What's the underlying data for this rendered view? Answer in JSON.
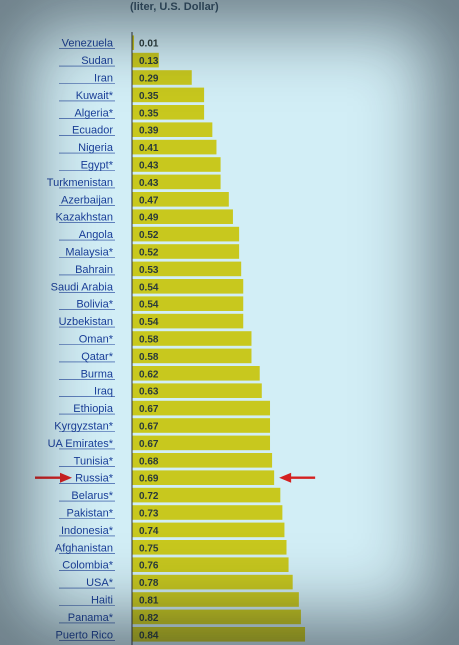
{
  "header": {
    "unit_label": "(liter, U.S. Dollar)"
  },
  "colors": {
    "bar": "#c8c81e",
    "label": "#1a3f9a",
    "arrow": "#d42020",
    "axis": "#333333"
  },
  "highlight": "Russia*",
  "chart_data": {
    "type": "bar",
    "orientation": "horizontal",
    "title": "",
    "xlabel": "",
    "ylabel": "",
    "unit": "(liter, U.S. Dollar)",
    "xlim": [
      0,
      1.0
    ],
    "categories": [
      "Venezuela",
      "Sudan",
      "Iran",
      "Kuwait*",
      "Algeria*",
      "Ecuador",
      "Nigeria",
      "Egypt*",
      "Turkmenistan",
      "Azerbaijan",
      "Kazakhstan",
      "Angola",
      "Malaysia*",
      "Bahrain",
      "Saudi Arabia",
      "Bolivia*",
      "Uzbekistan",
      "Oman*",
      "Qatar*",
      "Burma",
      "Iraq",
      "Ethiopia",
      "Kyrgyzstan*",
      "UA Emirates*",
      "Tunisia*",
      "Russia*",
      "Belarus*",
      "Pakistan*",
      "Indonesia*",
      "Afghanistan",
      "Colombia*",
      "USA*",
      "Haiti",
      "Panama*",
      "Puerto Rico"
    ],
    "values": [
      0.01,
      0.13,
      0.29,
      0.35,
      0.35,
      0.39,
      0.41,
      0.43,
      0.43,
      0.47,
      0.49,
      0.52,
      0.52,
      0.53,
      0.54,
      0.54,
      0.54,
      0.58,
      0.58,
      0.62,
      0.63,
      0.67,
      0.67,
      0.67,
      0.68,
      0.69,
      0.72,
      0.73,
      0.74,
      0.75,
      0.76,
      0.78,
      0.81,
      0.82,
      0.84
    ],
    "value_labels": [
      "0.01",
      "0.13",
      "0.29",
      "0.35",
      "0.35",
      "0.39",
      "0.41",
      "0.43",
      "0.43",
      "0.47",
      "0.49",
      "0.52",
      "0.52",
      "0.53",
      "0.54",
      "0.54",
      "0.54",
      "0.58",
      "0.58",
      "0.62",
      "0.63",
      "0.67",
      "0.67",
      "0.67",
      "0.68",
      "0.69",
      "0.72",
      "0.73",
      "0.74",
      "0.75",
      "0.76",
      "0.78",
      "0.81",
      "0.82",
      "0.84"
    ]
  }
}
